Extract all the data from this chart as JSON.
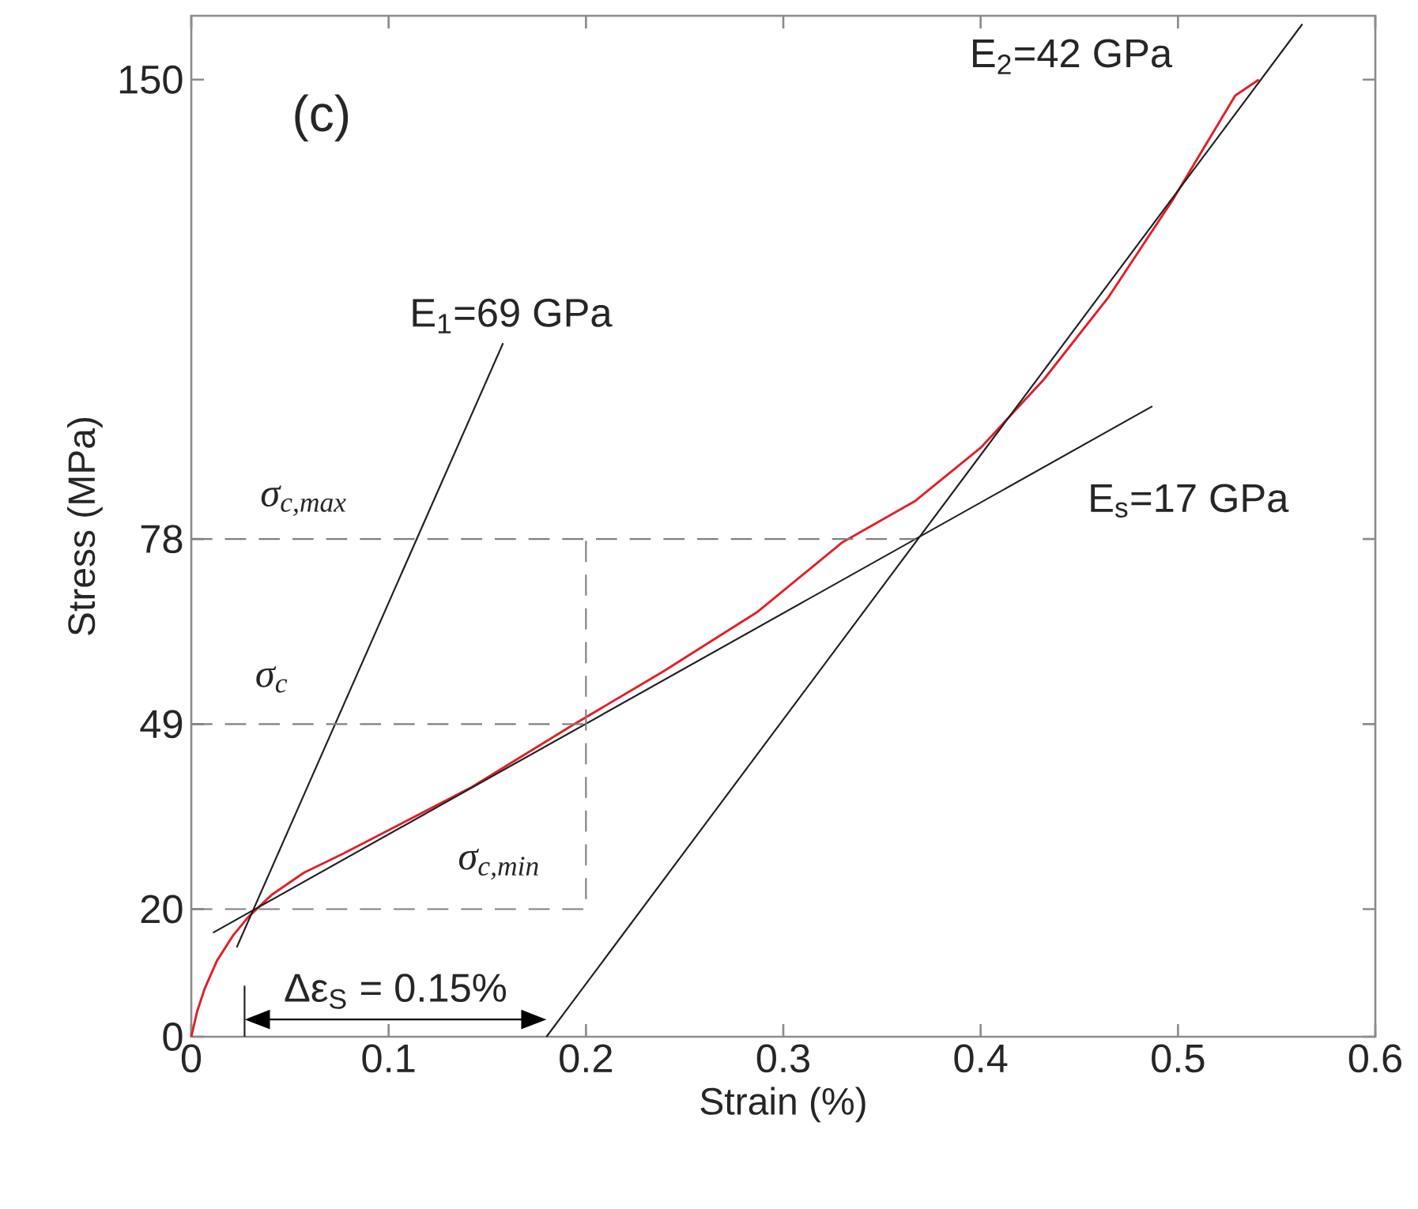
{
  "chart_data": {
    "type": "line",
    "xlabel": "Strain (%)",
    "ylabel": "Stress (MPa)",
    "xlim": [
      0,
      0.6
    ],
    "ylim": [
      0,
      160
    ],
    "xticks": [
      0,
      0.1,
      0.2,
      0.3,
      0.4,
      0.5,
      0.6
    ],
    "yticks": [
      0,
      20,
      49,
      78,
      150
    ],
    "grid": false,
    "marker": "none",
    "series": [
      {
        "color": "#e0202a",
        "line_style": "solid",
        "x": [
          0,
          0.003,
          0.007,
          0.013,
          0.021,
          0.029,
          0.041,
          0.057,
          0.077,
          0.102,
          0.142,
          0.193,
          0.239,
          0.287,
          0.33,
          0.367,
          0.4,
          0.432,
          0.465,
          0.497,
          0.529,
          0.541
        ],
        "values": [
          0,
          4,
          7.7,
          11.9,
          15.8,
          18.8,
          22.3,
          25.7,
          28.7,
          32.7,
          39.1,
          48.8,
          57.2,
          66.6,
          77.5,
          84,
          92.3,
          103,
          116,
          131,
          147.5,
          150
        ]
      },
      {
        "color": "#202020",
        "line_style": "solid",
        "x": [
          0.023,
          0.158
        ],
        "values": [
          14,
          108.7
        ]
      },
      {
        "color": "#202020",
        "line_style": "solid",
        "x": [
          0.011,
          0.487
        ],
        "values": [
          16.3,
          98.8
        ]
      },
      {
        "color": "#202020",
        "line_style": "solid",
        "x": [
          0.18,
          0.563
        ],
        "values": [
          0,
          158.7
        ]
      },
      {
        "color": "#808080",
        "line_style": "dashed",
        "x": [
          0,
          0.2,
          0.2
        ],
        "values": [
          20,
          20,
          78
        ]
      },
      {
        "color": "#808080",
        "line_style": "dashed",
        "x": [
          0,
          0.2
        ],
        "values": [
          49,
          49
        ]
      },
      {
        "color": "#808080",
        "line_style": "dashed",
        "x": [
          0,
          0.367
        ],
        "values": [
          78,
          78
        ]
      },
      {
        "color": "#202020",
        "line_style": "solid",
        "x": [
          0.027,
          0.027
        ],
        "values": [
          0,
          8
        ]
      }
    ],
    "annotations": [
      "(c)",
      "σ$_{c,max}$",
      "σ$_{c}$",
      "σ$_{c,min}$",
      "E$_{1}$=69 GPa",
      "E$_{2}$=42 GPa",
      "E$_{s}$=17 GPa",
      {
        "text": "Δε$_{S}$ = 0.15%",
        "x": 0.18,
        "y": 0
      }
    ]
  }
}
